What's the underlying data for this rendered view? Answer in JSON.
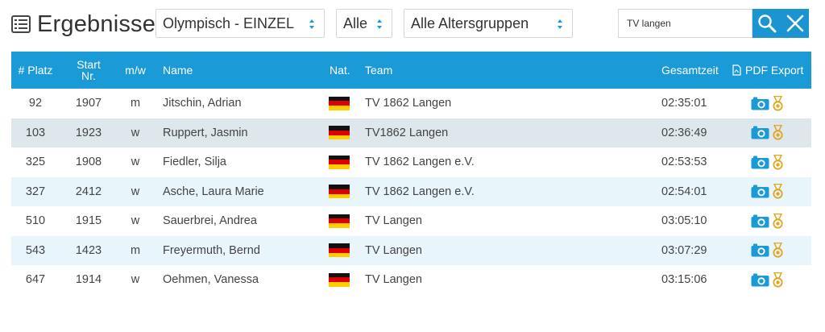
{
  "header": {
    "title": "Ergebnisse",
    "competition_select": "Olympisch - EINZEL",
    "gender_select": "Alle",
    "age_select": "Alle Altersgruppen",
    "search_value": "TV langen"
  },
  "table": {
    "columns": {
      "platz": "# Platz",
      "start_line1": "Start",
      "start_line2": "Nr.",
      "gender": "m/w",
      "name": "Name",
      "nat": "Nat.",
      "team": "Team",
      "gesamtzeit": "Gesamtzeit",
      "pdf_export": "PDF Export"
    },
    "rows": [
      {
        "platz": "92",
        "start": "1907",
        "gender": "m",
        "name": "Jitschin, Adrian",
        "team": "TV 1862 Langen",
        "time": "02:35:01"
      },
      {
        "platz": "103",
        "start": "1923",
        "gender": "w",
        "name": "Ruppert, Jasmin",
        "team": "TV1862 Langen",
        "time": "02:36:49"
      },
      {
        "platz": "325",
        "start": "1908",
        "gender": "w",
        "name": "Fiedler, Silja",
        "team": "TV 1862 Langen e.V.",
        "time": "02:53:53"
      },
      {
        "platz": "327",
        "start": "2412",
        "gender": "w",
        "name": "Asche, Laura Marie",
        "team": "TV 1862 Langen e.V.",
        "time": "02:54:01"
      },
      {
        "platz": "510",
        "start": "1915",
        "gender": "w",
        "name": "Sauerbrei, Andrea",
        "team": "TV Langen",
        "time": "03:05:10"
      },
      {
        "platz": "543",
        "start": "1423",
        "gender": "m",
        "name": "Freyermuth, Bernd",
        "team": "TV Langen",
        "time": "03:07:29"
      },
      {
        "platz": "647",
        "start": "1914",
        "gender": "w",
        "name": "Oehmen, Vanessa",
        "team": "TV Langen",
        "time": "03:15:06"
      }
    ]
  },
  "colors": {
    "accent": "#1a9ad6",
    "row_alt": "#e8f5fb",
    "row_highlight": "#dde7ec",
    "medal": "#e0a820"
  }
}
